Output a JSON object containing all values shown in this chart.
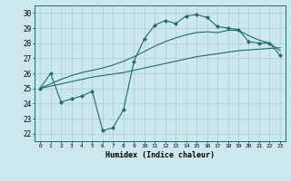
{
  "xlabel": "Humidex (Indice chaleur)",
  "bg_color": "#cce8ec",
  "grid_color": "#aacdd4",
  "line_color": "#1f6b6b",
  "xlim": [
    -0.5,
    23.5
  ],
  "ylim": [
    21.5,
    30.5
  ],
  "xticks": [
    0,
    1,
    2,
    3,
    4,
    5,
    6,
    7,
    8,
    9,
    10,
    11,
    12,
    13,
    14,
    15,
    16,
    17,
    18,
    19,
    20,
    21,
    22,
    23
  ],
  "yticks": [
    22,
    23,
    24,
    25,
    26,
    27,
    28,
    29,
    30
  ],
  "line1_y": [
    25.0,
    26.0,
    24.1,
    24.3,
    24.5,
    24.8,
    22.2,
    22.4,
    23.6,
    26.8,
    28.3,
    29.2,
    29.5,
    29.3,
    29.8,
    29.9,
    29.7,
    29.1,
    29.0,
    28.9,
    28.1,
    28.0,
    28.0,
    27.2
  ],
  "line2_y": [
    25.0,
    25.15,
    25.3,
    25.45,
    25.6,
    25.75,
    25.85,
    25.95,
    26.05,
    26.2,
    26.35,
    26.5,
    26.65,
    26.8,
    26.95,
    27.1,
    27.2,
    27.3,
    27.4,
    27.5,
    27.55,
    27.6,
    27.65,
    27.7
  ],
  "line3_y": [
    25.0,
    25.3,
    25.6,
    25.85,
    26.05,
    26.2,
    26.35,
    26.55,
    26.8,
    27.1,
    27.45,
    27.8,
    28.1,
    28.35,
    28.55,
    28.7,
    28.75,
    28.7,
    28.85,
    28.85,
    28.5,
    28.2,
    28.0,
    27.5
  ]
}
